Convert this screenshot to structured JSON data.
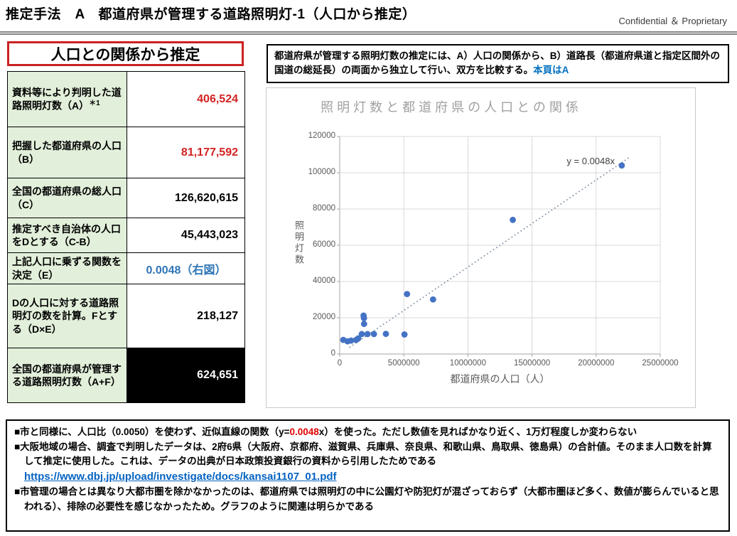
{
  "header": {
    "title": "推定手法　A　都道府県が管理する道路照明灯-1（人口から推定）",
    "confidential": "Confidential ＆ Proprietary"
  },
  "left_panel": {
    "heading": "人口との関係から推定"
  },
  "table": {
    "rows": [
      {
        "label": "資料等により判明した道路照明灯数（A）",
        "label_sup": "＊1",
        "value": "406,524"
      },
      {
        "label": "把握した都道府県の人口（B）",
        "value": "81,177,592"
      },
      {
        "label": "全国の都道府県の総人口（C）",
        "value": "126,620,615"
      },
      {
        "label": "推定すべき自治体の人口をDとする（C-B）",
        "value": "45,443,023"
      },
      {
        "label": "上記人口に乗ずる関数を決定（E）",
        "value": "0.0048（右図）"
      },
      {
        "label": "Dの人口に対する道路照明灯の数を計算。Fとする（D×E）",
        "value": "218,127"
      },
      {
        "label": "全国の都道府県が管理する道路照明灯数（A+F）",
        "value": "624,651"
      }
    ]
  },
  "method_note": {
    "text": "都道府県が管理する照明灯数の推定には、A）人口の関係から、B）道路長（都道府県道と指定区間外の国道の総延長）の両面から独立して行い、双方を比較する。",
    "highlight": "本頁はA"
  },
  "chart_data": {
    "type": "scatter",
    "title": "照明灯数と都道府県の人口との関係",
    "xlabel": "都道府県の人口（人）",
    "ylabel": "照明灯数",
    "xlim": [
      0,
      25000000
    ],
    "ylim": [
      0,
      120000
    ],
    "x_ticks": [
      0,
      5000000,
      10000000,
      15000000,
      20000000,
      25000000
    ],
    "y_ticks": [
      0,
      20000,
      40000,
      60000,
      80000,
      100000,
      120000
    ],
    "grid": true,
    "legend": "none",
    "points": [
      [
        280000,
        7800
      ],
      [
        610000,
        7000
      ],
      [
        890000,
        7400
      ],
      [
        1280000,
        7800
      ],
      [
        1440000,
        8600
      ],
      [
        1860000,
        21200
      ],
      [
        1890000,
        19800
      ],
      [
        1900000,
        16600
      ],
      [
        1720000,
        11000
      ],
      [
        2170000,
        11000
      ],
      [
        2670000,
        11000
      ],
      [
        3600000,
        11100
      ],
      [
        5050000,
        10800
      ],
      [
        5250000,
        33100
      ],
      [
        7280000,
        30100
      ],
      [
        13500000,
        74000
      ],
      [
        22000000,
        104000
      ]
    ],
    "trendline": {
      "label": "y = 0.0048x",
      "slope": 0.0048,
      "x_start": 750000,
      "x_end": 22550000
    }
  },
  "notes": {
    "line1_pre": "■市と同様に、人口比（0.0050）を使わず、近似直線の関数（y=",
    "line1_red": "0.0048",
    "line1_post": "x）を使った。ただし数値を見ればかなり近く、1万灯程度しか変わらない",
    "line2": "■大阪地域の場合、調査で判明したデータは、2府6県（大阪府、京都府、滋賀県、兵庫県、奈良県、和歌山県、鳥取県、徳島県）の合計値。そのまま人口数を計算して推定に使用した。これは、データの出典が日本政策投資銀行の資料から引用したためである",
    "link": "https://www.dbj.jp/upload/investigate/docs/kansai1107_01.pdf",
    "line3": "■市管理の場合とは異なり大都市圏を除かなかったのは、都道府県では照明灯の中に公園灯や防犯灯が混ざっておらず（大都市圏ほど多く、数値が膨らんでいると思われる）、排除の必要性を感じなかったため。グラフのように関連は明らかである"
  },
  "colors": {
    "accent_red": "#d32121",
    "note_red": "#e00000",
    "accent_blue": "#2e75b6",
    "highlight_blue": "#0070c0",
    "link_blue": "#0563c1",
    "point_blue": "#4472c4",
    "label_green": "#e2efda"
  }
}
